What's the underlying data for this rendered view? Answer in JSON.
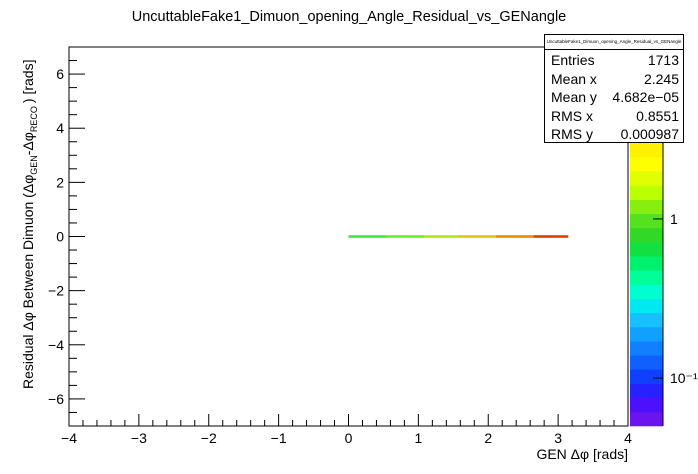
{
  "chart_data": {
    "type": "heatmap",
    "title": "UncuttableFake1_Dimuon_opening_Angle_Residual_vs_GENangle",
    "xlabel": "GEN Δφ [rads]",
    "ylabel": "Residual Δφ Between Dimuon (Δφ_GEN - Δφ_RECO ) [rads]",
    "ylabel_parts": {
      "prefix": "Residual Δφ Between Dimuon (Δφ",
      "sub1": "GEN",
      "mid": "-Δφ",
      "sub2": "RECO",
      "suffix": ") [rads]"
    },
    "xlim": [
      -4,
      4
    ],
    "ylim": [
      -7,
      7
    ],
    "x_ticks": [
      "−4",
      "−3",
      "−2",
      "−1",
      "0",
      "1",
      "2",
      "3",
      "4"
    ],
    "x_tick_values": [
      -4,
      -3,
      -2,
      -1,
      0,
      1,
      2,
      3,
      4
    ],
    "y_ticks": [
      "−6",
      "−4",
      "−2",
      "0",
      "2",
      "4",
      "6"
    ],
    "y_tick_values": [
      -6,
      -4,
      -2,
      0,
      2,
      4,
      6
    ],
    "band": {
      "x_start": 0.0,
      "x_end": 3.14,
      "y": 0.0,
      "colors": [
        "#33ee33",
        "#66f022",
        "#aaee00",
        "#ddcc00",
        "#f08800",
        "#e04000"
      ]
    },
    "colorbar": {
      "scale": "log",
      "range": [
        0.05,
        3
      ],
      "tick_labels": [
        "1",
        "10⁻¹"
      ],
      "tick_values": [
        1,
        0.1
      ],
      "colors": [
        "#6a14ee",
        "#4c10ff",
        "#2622ff",
        "#1040ff",
        "#1060ff",
        "#1080ff",
        "#10a0ff",
        "#18c0ff",
        "#00e8f0",
        "#00ffd0",
        "#00ff99",
        "#00f070",
        "#10e040",
        "#33d826",
        "#55e020",
        "#88ee10",
        "#bbff00",
        "#e0ff00",
        "#ffff00",
        "#fff000"
      ]
    },
    "stats": {
      "title": "UncuttableFake1_Dimuon_opening_Angle_Residual_vs_GENangle",
      "rows": [
        {
          "label": "Entries",
          "value": "1713"
        },
        {
          "label": "Mean x",
          "value": "2.245"
        },
        {
          "label": "Mean y",
          "value": "4.682e−05"
        },
        {
          "label": "RMS x",
          "value": "0.8551"
        },
        {
          "label": "RMS y",
          "value": "0.000987"
        }
      ]
    }
  }
}
